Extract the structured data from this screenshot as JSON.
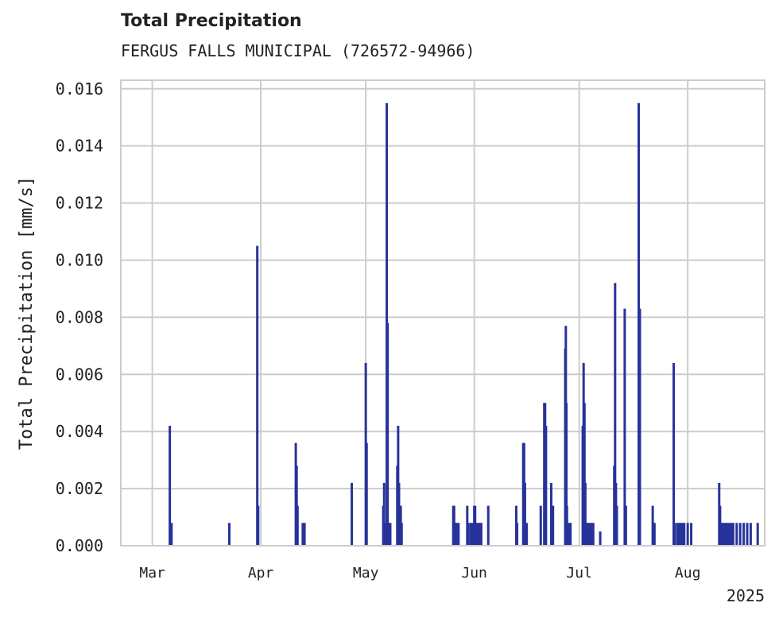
{
  "chart_data": {
    "type": "bar",
    "title": "Total Precipitation",
    "subtitle": "FERGUS FALLS MUNICIPAL (726572-94966)",
    "ylabel": "Total Precipitation [mm/s]",
    "xlabel": "",
    "x_axis": {
      "type": "date",
      "range": [
        "2025-02-20",
        "2025-08-23"
      ],
      "tick_dates": [
        "2025-03-01",
        "2025-04-01",
        "2025-05-01",
        "2025-06-01",
        "2025-07-01",
        "2025-08-01"
      ],
      "tick_labels": [
        "Mar",
        "Apr",
        "May",
        "Jun",
        "Jul",
        "Aug"
      ],
      "year_label": "2025"
    },
    "y_axis": {
      "range": [
        0,
        0.0163
      ],
      "ticks": [
        0.0,
        0.002,
        0.004,
        0.006,
        0.008,
        0.01,
        0.012,
        0.014,
        0.016
      ],
      "tick_labels": [
        "0.000",
        "0.002",
        "0.004",
        "0.006",
        "0.008",
        "0.010",
        "0.012",
        "0.014",
        "0.016"
      ]
    },
    "grid": true,
    "bar_color": "#27339a",
    "series": [
      {
        "points": [
          [
            "2025-03-06T00:00",
            0.0042
          ],
          [
            "2025-03-06T12:00",
            0.0008
          ],
          [
            "2025-03-23T00:00",
            0.0008
          ],
          [
            "2025-03-31T00:00",
            0.0105
          ],
          [
            "2025-03-31T06:00",
            0.0014
          ],
          [
            "2025-04-11T00:00",
            0.0036
          ],
          [
            "2025-04-11T06:00",
            0.0028
          ],
          [
            "2025-04-11T12:00",
            0.0014
          ],
          [
            "2025-04-13T00:00",
            0.0008
          ],
          [
            "2025-04-13T12:00",
            0.0008
          ],
          [
            "2025-04-27T00:00",
            0.0022
          ],
          [
            "2025-05-01T00:00",
            0.0064
          ],
          [
            "2025-05-01T06:00",
            0.0036
          ],
          [
            "2025-05-06T00:00",
            0.0014
          ],
          [
            "2025-05-06T06:00",
            0.0022
          ],
          [
            "2025-05-06T12:00",
            0.0008
          ],
          [
            "2025-05-07T00:00",
            0.0155
          ],
          [
            "2025-05-07T06:00",
            0.0078
          ],
          [
            "2025-05-07T12:00",
            0.0008
          ],
          [
            "2025-05-08T00:00",
            0.0008
          ],
          [
            "2025-05-10T00:00",
            0.0028
          ],
          [
            "2025-05-10T06:00",
            0.0042
          ],
          [
            "2025-05-10T12:00",
            0.0022
          ],
          [
            "2025-05-11T00:00",
            0.0014
          ],
          [
            "2025-05-11T06:00",
            0.0008
          ],
          [
            "2025-05-26T00:00",
            0.0014
          ],
          [
            "2025-05-26T06:00",
            0.0014
          ],
          [
            "2025-05-26T12:00",
            0.0008
          ],
          [
            "2025-05-27T00:00",
            0.0008
          ],
          [
            "2025-05-27T12:00",
            0.0008
          ],
          [
            "2025-05-30T00:00",
            0.0014
          ],
          [
            "2025-05-30T08:00",
            0.0008
          ],
          [
            "2025-05-31T00:00",
            0.0008
          ],
          [
            "2025-05-31T12:00",
            0.0008
          ],
          [
            "2025-06-01T00:00",
            0.0014
          ],
          [
            "2025-06-01T06:00",
            0.0014
          ],
          [
            "2025-06-01T12:00",
            0.0008
          ],
          [
            "2025-06-02T00:00",
            0.0008
          ],
          [
            "2025-06-02T12:00",
            0.0008
          ],
          [
            "2025-06-03T00:00",
            0.0008
          ],
          [
            "2025-06-05T00:00",
            0.0014
          ],
          [
            "2025-06-13T00:00",
            0.0014
          ],
          [
            "2025-06-13T06:00",
            0.0008
          ],
          [
            "2025-06-15T00:00",
            0.0036
          ],
          [
            "2025-06-15T06:00",
            0.0036
          ],
          [
            "2025-06-15T12:00",
            0.0022
          ],
          [
            "2025-06-16T00:00",
            0.0008
          ],
          [
            "2025-06-20T00:00",
            0.0014
          ],
          [
            "2025-06-21T00:00",
            0.005
          ],
          [
            "2025-06-21T06:00",
            0.005
          ],
          [
            "2025-06-21T12:00",
            0.0042
          ],
          [
            "2025-06-23T00:00",
            0.0022
          ],
          [
            "2025-06-23T12:00",
            0.0014
          ],
          [
            "2025-06-27T00:00",
            0.0069
          ],
          [
            "2025-06-27T04:00",
            0.0077
          ],
          [
            "2025-06-27T08:00",
            0.005
          ],
          [
            "2025-06-27T12:00",
            0.0014
          ],
          [
            "2025-06-28T00:00",
            0.0008
          ],
          [
            "2025-06-28T12:00",
            0.0008
          ],
          [
            "2025-07-02T00:00",
            0.0042
          ],
          [
            "2025-07-02T06:00",
            0.0064
          ],
          [
            "2025-07-02T12:00",
            0.005
          ],
          [
            "2025-07-02T18:00",
            0.0022
          ],
          [
            "2025-07-03T00:00",
            0.0008
          ],
          [
            "2025-07-03T12:00",
            0.0008
          ],
          [
            "2025-07-04T00:00",
            0.0008
          ],
          [
            "2025-07-04T12:00",
            0.0008
          ],
          [
            "2025-07-05T00:00",
            0.0008
          ],
          [
            "2025-07-07T00:00",
            0.0005
          ],
          [
            "2025-07-11T00:00",
            0.0028
          ],
          [
            "2025-07-11T06:00",
            0.0092
          ],
          [
            "2025-07-11T12:00",
            0.0022
          ],
          [
            "2025-07-11T18:00",
            0.0014
          ],
          [
            "2025-07-14T00:00",
            0.0083
          ],
          [
            "2025-07-14T08:00",
            0.0014
          ],
          [
            "2025-07-18T00:00",
            0.0155
          ],
          [
            "2025-07-18T08:00",
            0.0083
          ],
          [
            "2025-07-22T00:00",
            0.0014
          ],
          [
            "2025-07-22T06:00",
            0.0008
          ],
          [
            "2025-07-22T12:00",
            0.0008
          ],
          [
            "2025-07-28T00:00",
            0.0064
          ],
          [
            "2025-07-28T06:00",
            0.0008
          ],
          [
            "2025-07-29T00:00",
            0.0008
          ],
          [
            "2025-07-29T12:00",
            0.0008
          ],
          [
            "2025-07-30T00:00",
            0.0008
          ],
          [
            "2025-07-30T12:00",
            0.0008
          ],
          [
            "2025-07-31T00:00",
            0.0008
          ],
          [
            "2025-08-01T00:00",
            0.0008
          ],
          [
            "2025-08-02T00:00",
            0.0008
          ],
          [
            "2025-08-10T00:00",
            0.0022
          ],
          [
            "2025-08-10T06:00",
            0.0014
          ],
          [
            "2025-08-10T12:00",
            0.0008
          ],
          [
            "2025-08-11T00:00",
            0.0008
          ],
          [
            "2025-08-11T12:00",
            0.0008
          ],
          [
            "2025-08-12T00:00",
            0.0008
          ],
          [
            "2025-08-12T12:00",
            0.0008
          ],
          [
            "2025-08-13T00:00",
            0.0008
          ],
          [
            "2025-08-13T12:00",
            0.0008
          ],
          [
            "2025-08-14T00:00",
            0.0008
          ],
          [
            "2025-08-15T00:00",
            0.0008
          ],
          [
            "2025-08-16T00:00",
            0.0008
          ],
          [
            "2025-08-17T00:00",
            0.0008
          ],
          [
            "2025-08-18T00:00",
            0.0008
          ],
          [
            "2025-08-19T00:00",
            0.0008
          ],
          [
            "2025-08-21T00:00",
            0.0008
          ]
        ]
      }
    ]
  }
}
